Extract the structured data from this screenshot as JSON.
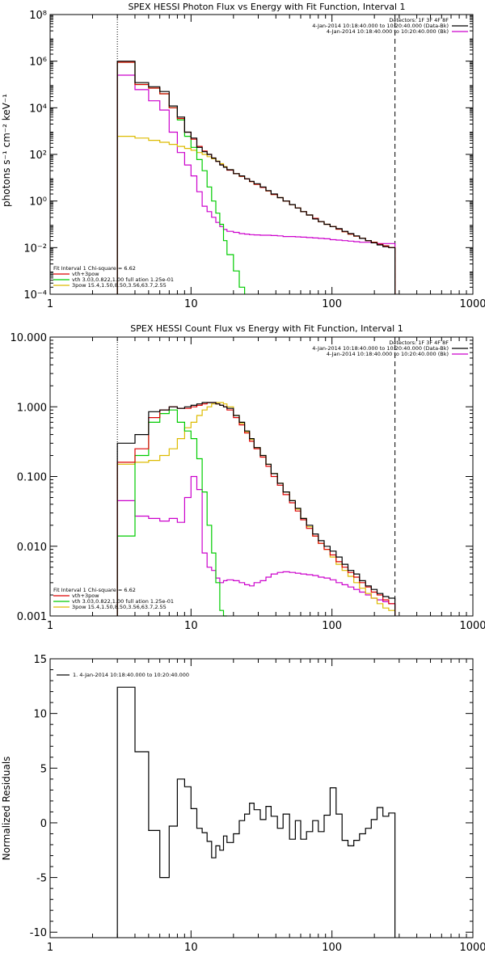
{
  "chart_data": [
    {
      "type": "line",
      "title": "SPEX HESSI Photon Flux vs Energy with Fit Function, Interval 1",
      "ylabel": "photons s⁻¹ cm⁻² keV⁻¹",
      "xlabel": "",
      "xscale": "log",
      "yscale": "log",
      "xlim": [
        1,
        1000
      ],
      "ylim": [
        0.0001,
        100000000
      ],
      "xticks": [
        "1",
        "10",
        "100",
        "1000"
      ],
      "yticks": [
        {
          "v": 0.0001,
          "label": "10⁻⁴"
        },
        {
          "v": 0.01,
          "label": "10⁻²"
        },
        {
          "v": 1,
          "label": "10⁰"
        },
        {
          "v": 100,
          "label": "10²"
        },
        {
          "v": 10000,
          "label": "10⁴"
        },
        {
          "v": 1000000,
          "label": "10⁶"
        },
        {
          "v": 100000000,
          "label": "10⁸"
        }
      ],
      "vlines": [
        {
          "x": 3,
          "style": "dotted"
        },
        {
          "x": 280,
          "style": "dashed"
        }
      ],
      "legend_top_right": [
        {
          "text": "Detectors: 1F 3F 4F 8F",
          "color": ""
        },
        {
          "text": "4-Jan-2014 10:18:40.000 to 10:20:40.000 (Data-Bk)",
          "color": "#000000"
        },
        {
          "text": "4-Jan-2014 10:18:40.000 to 10:20:40.000 (Bk)",
          "color": "#cc00cc"
        }
      ],
      "legend_bottom_left": [
        {
          "text": "Fit Interval 1    Chi-square = 6.62",
          "color": ""
        },
        {
          "text": "vth+3pow",
          "color": "#dd0000"
        },
        {
          "text": "vth 3.03,0.822,1.00  full ation 1.25e-01",
          "color": "#00cc00"
        },
        {
          "text": "3pow 15.4,1.50,8.50,3.56,63.7,2.55",
          "color": "#ddbb00"
        }
      ],
      "bin_edges": [
        3,
        4,
        5,
        6,
        7,
        8,
        9,
        10,
        11,
        12,
        13,
        14,
        15,
        16,
        17,
        18,
        20,
        22,
        24,
        26,
        28,
        31,
        34,
        37,
        41,
        45,
        50,
        55,
        60,
        66,
        73,
        80,
        88,
        97,
        107,
        118,
        130,
        143,
        157,
        173,
        190,
        209,
        230,
        253,
        280
      ],
      "series": [
        {
          "name": "",
          "color": "#000000",
          "values": [
            1000000,
            120000,
            80000,
            50000,
            12000,
            4000,
            900,
            500,
            200,
            130,
            100,
            70,
            50,
            35,
            28,
            22,
            15,
            12,
            9,
            7,
            5.5,
            4,
            2.8,
            2,
            1.4,
            1,
            0.7,
            0.5,
            0.35,
            0.25,
            0.17,
            0.13,
            0.1,
            0.08,
            0.065,
            0.05,
            0.04,
            0.032,
            0.025,
            0.02,
            0.016,
            0.013,
            0.011,
            0.01
          ]
        },
        {
          "name": "",
          "color": "#dd0000",
          "values": [
            900000,
            100000,
            70000,
            40000,
            10000,
            3500,
            900,
            450,
            220,
            140,
            100,
            70,
            50,
            36,
            28,
            21,
            15,
            11.5,
            8.8,
            6.8,
            5.2,
            3.8,
            2.7,
            1.9,
            1.4,
            1,
            0.7,
            0.5,
            0.35,
            0.25,
            0.18,
            0.13,
            0.1,
            0.08,
            0.062,
            0.048,
            0.038,
            0.031,
            0.025,
            0.02,
            0.017,
            0.014,
            0.012,
            0.01
          ]
        },
        {
          "name": "",
          "color": "#00cc00",
          "values": [
            900000,
            100000,
            70000,
            40000,
            10000,
            3000,
            600,
            200,
            60,
            20,
            4,
            1,
            0.3,
            0.1,
            0.02,
            0.005,
            0.001,
            0.0002
          ]
        },
        {
          "name": "",
          "color": "#ddbb00",
          "values": [
            600,
            500,
            400,
            330,
            270,
            220,
            180,
            150,
            120,
            100,
            80,
            65,
            52,
            40,
            30,
            22,
            15,
            11.5,
            8.8,
            6.8,
            5.2,
            3.8,
            2.7,
            1.9,
            1.4,
            1,
            0.7,
            0.5,
            0.35,
            0.25,
            0.18,
            0.13,
            0.1,
            0.08,
            0.062,
            0.048,
            0.038,
            0.031,
            0.025,
            0.02,
            0.017,
            0.014,
            0.012,
            0.01
          ]
        },
        {
          "name": "",
          "color": "#cc00cc",
          "values": [
            250000,
            60000,
            20000,
            8000,
            900,
            120,
            35,
            12,
            2.5,
            0.6,
            0.35,
            0.2,
            0.12,
            0.08,
            0.06,
            0.05,
            0.045,
            0.04,
            0.038,
            0.036,
            0.035,
            0.034,
            0.034,
            0.033,
            0.032,
            0.03,
            0.03,
            0.029,
            0.028,
            0.027,
            0.026,
            0.025,
            0.024,
            0.022,
            0.021,
            0.02,
            0.019,
            0.018,
            0.017,
            0.017,
            0.016,
            0.015,
            0.015,
            0.015
          ]
        }
      ]
    },
    {
      "type": "line",
      "title": "SPEX HESSI Count Flux vs Energy with Fit Function, Interval 1",
      "ylabel": "",
      "xlabel": "",
      "xscale": "log",
      "yscale": "log",
      "xlim": [
        1,
        1000
      ],
      "ylim": [
        0.001,
        10
      ],
      "xticks": [
        "1",
        "10",
        "100",
        "1000"
      ],
      "yticks": [
        {
          "v": 0.001,
          "label": "0.001"
        },
        {
          "v": 0.01,
          "label": "0.010"
        },
        {
          "v": 0.1,
          "label": "0.100"
        },
        {
          "v": 1,
          "label": "1.000"
        },
        {
          "v": 10,
          "label": "10.000"
        }
      ],
      "vlines": [
        {
          "x": 3,
          "style": "dotted"
        },
        {
          "x": 280,
          "style": "dashed"
        }
      ],
      "legend_top_right": [
        {
          "text": "Detectors: 1F 3F 4F 8F",
          "color": ""
        },
        {
          "text": "4-Jan-2014 10:18:40.000 to 10:20:40.000 (Data-Bk)",
          "color": "#000000"
        },
        {
          "text": "4-Jan-2014 10:18:40.000 to 10:20:40.000 (Bk)",
          "color": "#cc00cc"
        }
      ],
      "legend_bottom_left": [
        {
          "text": "Fit Interval 1    Chi-square = 6.62",
          "color": ""
        },
        {
          "text": "vth+3pow",
          "color": "#dd0000"
        },
        {
          "text": "vth 3.03,0.822,1.00  full ation 1.25e-01",
          "color": "#00cc00"
        },
        {
          "text": "3pow 15.4,1.50,8.50,3.56,63.7,2.55",
          "color": "#ddbb00"
        }
      ],
      "bin_edges": [
        3,
        4,
        5,
        6,
        7,
        8,
        9,
        10,
        11,
        12,
        13,
        14,
        15,
        16,
        17,
        18,
        20,
        22,
        24,
        26,
        28,
        31,
        34,
        37,
        41,
        45,
        50,
        55,
        60,
        66,
        73,
        80,
        88,
        97,
        107,
        118,
        130,
        143,
        157,
        173,
        190,
        209,
        230,
        253,
        280
      ],
      "series": [
        {
          "name": "",
          "color": "#000000",
          "values": [
            0.3,
            0.4,
            0.85,
            0.9,
            1.0,
            0.95,
            1.0,
            1.05,
            1.1,
            1.15,
            1.15,
            1.15,
            1.1,
            1.05,
            1.0,
            0.95,
            0.75,
            0.6,
            0.45,
            0.35,
            0.26,
            0.2,
            0.15,
            0.11,
            0.08,
            0.06,
            0.045,
            0.035,
            0.025,
            0.02,
            0.015,
            0.012,
            0.01,
            0.0085,
            0.007,
            0.0055,
            0.0045,
            0.004,
            0.0032,
            0.0027,
            0.0024,
            0.0021,
            0.0019,
            0.0018
          ]
        },
        {
          "name": "",
          "color": "#dd0000",
          "values": [
            0.16,
            0.25,
            0.7,
            0.9,
            1.0,
            0.95,
            0.95,
            1.0,
            1.05,
            1.1,
            1.15,
            1.15,
            1.1,
            1.05,
            1.0,
            0.9,
            0.7,
            0.55,
            0.42,
            0.32,
            0.25,
            0.19,
            0.14,
            0.1,
            0.075,
            0.055,
            0.042,
            0.032,
            0.024,
            0.018,
            0.014,
            0.011,
            0.009,
            0.0075,
            0.006,
            0.005,
            0.0042,
            0.0036,
            0.003,
            0.0026,
            0.0022,
            0.002,
            0.0017,
            0.0015
          ]
        },
        {
          "name": "",
          "color": "#00cc00",
          "values": [
            0.014,
            0.2,
            0.6,
            0.8,
            0.9,
            0.6,
            0.45,
            0.35,
            0.18,
            0.06,
            0.02,
            0.008,
            0.003,
            0.0012,
            0.0004
          ]
        },
        {
          "name": "",
          "color": "#ddbb00",
          "values": [
            0.15,
            0.16,
            0.17,
            0.2,
            0.25,
            0.35,
            0.5,
            0.6,
            0.75,
            0.9,
            1.0,
            1.1,
            1.15,
            1.15,
            1.1,
            1.0,
            0.75,
            0.58,
            0.44,
            0.34,
            0.26,
            0.2,
            0.15,
            0.11,
            0.08,
            0.06,
            0.045,
            0.034,
            0.025,
            0.019,
            0.014,
            0.011,
            0.009,
            0.007,
            0.0055,
            0.0045,
            0.0037,
            0.003,
            0.0025,
            0.0021,
            0.0018,
            0.0015,
            0.0013,
            0.0012
          ]
        },
        {
          "name": "",
          "color": "#cc00cc",
          "values": [
            0.045,
            0.027,
            0.025,
            0.023,
            0.025,
            0.022,
            0.05,
            0.1,
            0.065,
            0.008,
            0.005,
            0.0045,
            0.0035,
            0.003,
            0.0032,
            0.0033,
            0.0032,
            0.003,
            0.0028,
            0.0027,
            0.003,
            0.0032,
            0.0036,
            0.004,
            0.0042,
            0.0043,
            0.0042,
            0.0041,
            0.004,
            0.0039,
            0.0038,
            0.0036,
            0.0035,
            0.0033,
            0.003,
            0.0028,
            0.0026,
            0.0024,
            0.0022,
            0.002,
            0.0018,
            0.0017,
            0.0016,
            0.0015
          ]
        }
      ]
    },
    {
      "type": "line",
      "title": "",
      "ylabel": "Normalized Residuals",
      "xlabel": "",
      "xscale": "log",
      "yscale": "linear",
      "xlim": [
        1,
        1000
      ],
      "ylim": [
        -10.5,
        15
      ],
      "xticks": [
        "1",
        "10",
        "100",
        "1000"
      ],
      "yticks": [
        {
          "v": -10,
          "label": "-10"
        },
        {
          "v": -5,
          "label": "-5"
        },
        {
          "v": 0,
          "label": "0"
        },
        {
          "v": 5,
          "label": "5"
        },
        {
          "v": 10,
          "label": "10"
        },
        {
          "v": 15,
          "label": "15"
        }
      ],
      "vlines": [],
      "legend_top_right": [],
      "legend_bottom_left": [],
      "legend_top_left": [
        {
          "text": "1.  4-Jan-2014 10:18:40.000 to 10:20:40.000",
          "color": "#000000"
        }
      ],
      "bin_edges": [
        3,
        4,
        5,
        6,
        7,
        8,
        9,
        10,
        11,
        12,
        13,
        14,
        15,
        16,
        17,
        18,
        20,
        22,
        24,
        26,
        28,
        31,
        34,
        37,
        41,
        45,
        50,
        55,
        60,
        66,
        73,
        80,
        88,
        97,
        107,
        118,
        130,
        143,
        157,
        173,
        190,
        209,
        230,
        253,
        280
      ],
      "series": [
        {
          "name": "",
          "color": "#000000",
          "values": [
            12.4,
            6.5,
            -0.7,
            -5.0,
            -0.3,
            4.0,
            3.3,
            1.3,
            -0.5,
            -0.9,
            -1.7,
            -3.2,
            -2.1,
            -2.5,
            -1.2,
            -1.8,
            -1.0,
            0.2,
            0.8,
            1.8,
            1.2,
            0.3,
            1.5,
            0.6,
            -0.5,
            0.8,
            -1.5,
            0.2,
            -1.5,
            -0.8,
            0.2,
            -0.8,
            0.7,
            3.2,
            0.8,
            -1.6,
            -2.1,
            -1.6,
            -1.0,
            -0.5,
            0.3,
            1.4,
            0.6,
            0.9
          ]
        }
      ]
    }
  ]
}
